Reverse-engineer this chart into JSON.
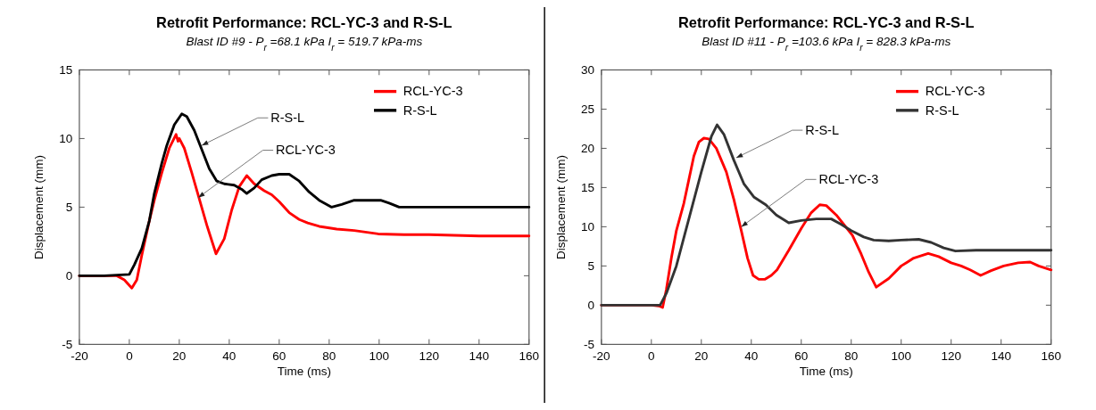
{
  "chart_data": [
    {
      "type": "line",
      "title": "Retrofit Performance: RCL-YC-3 and R-S-L",
      "subtitle": "Blast ID #9 - P$_{r}$ =68.1 kPa I$_{r}$ = 519.7 kPa-ms",
      "xlabel": "Time (ms)",
      "ylabel": "Displacement (mm)",
      "xlim": [
        -20,
        160
      ],
      "xticks": [
        -20,
        0,
        20,
        40,
        60,
        80,
        100,
        120,
        140,
        160
      ],
      "ylim": [
        -5,
        15
      ],
      "yticks": [
        -5,
        0,
        5,
        10,
        15
      ],
      "grid": false,
      "legend": "top right",
      "marker": "none",
      "line_style": "solid",
      "annotations": [
        {
          "text": "R-S-L",
          "x": 29,
          "y": 9.5
        },
        {
          "text": "RCL-YC-3",
          "x": 27.6,
          "y": 5.7
        }
      ],
      "series": [
        {
          "name": "RCL-YC-3",
          "color": "#ff0000",
          "x": [
            -20,
            -5,
            -2,
            1,
            3,
            5,
            8,
            10,
            13,
            16,
            18.7,
            19.5,
            20,
            22,
            25,
            28,
            31,
            34.7,
            38,
            41,
            44,
            47,
            50,
            54,
            57,
            60,
            64,
            68,
            71.4,
            76,
            83,
            90,
            99.6,
            110,
            120,
            130,
            140,
            150,
            160
          ],
          "values": [
            0,
            0,
            -0.3,
            -0.9,
            -0.3,
            1.5,
            4,
            5.5,
            7.5,
            9.3,
            10.3,
            9.8,
            10,
            9.3,
            7.5,
            5.6,
            3.7,
            1.6,
            2.7,
            4.8,
            6.5,
            7.3,
            6.7,
            6.2,
            5.9,
            5.4,
            4.6,
            4.1,
            3.85,
            3.6,
            3.4,
            3.3,
            3.05,
            3.0,
            3.0,
            2.95,
            2.9,
            2.9,
            2.9
          ]
        },
        {
          "name": "R-S-L",
          "color": "#000000",
          "x": [
            -20,
            -10,
            0,
            2,
            5,
            8,
            10,
            13,
            15,
            18,
            21,
            23,
            26,
            29,
            32,
            35,
            38,
            42,
            45,
            47,
            50,
            53,
            57,
            60,
            64,
            68,
            72,
            76,
            81,
            85,
            90,
            95,
            100.6,
            104,
            108,
            115,
            125,
            135,
            145,
            155,
            160
          ],
          "values": [
            0,
            0,
            0.1,
            0.8,
            2,
            4,
            6,
            8.2,
            9.5,
            11,
            11.8,
            11.6,
            10.6,
            9.2,
            7.8,
            6.9,
            6.7,
            6.6,
            6.3,
            6.0,
            6.4,
            7.0,
            7.3,
            7.4,
            7.4,
            6.9,
            6.1,
            5.5,
            5.0,
            5.2,
            5.5,
            5.5,
            5.5,
            5.3,
            5.0,
            5.0,
            5.0,
            5.0,
            5.0,
            5.0,
            5.0
          ]
        }
      ]
    },
    {
      "type": "line",
      "title": "Retrofit Performance: RCL-YC-3 and R-S-L",
      "subtitle": "Blast ID #11 - P$_{r}$ =103.6 kPa I$_{r}$ = 828.3 kPa-ms",
      "xlabel": "Time (ms)",
      "ylabel": "Displacement (mm)",
      "xlim": [
        -20,
        160
      ],
      "xticks": [
        -20,
        0,
        20,
        40,
        60,
        80,
        100,
        120,
        140,
        160
      ],
      "ylim": [
        -5,
        30
      ],
      "yticks": [
        -5,
        0,
        5,
        10,
        15,
        20,
        25,
        30
      ],
      "grid": false,
      "legend": "top right",
      "marker": "none",
      "line_style": "solid",
      "annotations": [
        {
          "text": "R-S-L",
          "x": 34,
          "y": 18.8
        },
        {
          "text": "RCL-YC-3",
          "x": 36,
          "y": 10
        }
      ],
      "series": [
        {
          "name": "RCL-YC-3",
          "color": "#ff0000",
          "x": [
            -20,
            0,
            3,
            4.5,
            6,
            8,
            10,
            13,
            15,
            17,
            19,
            21,
            23,
            26,
            30,
            33,
            36,
            38.5,
            40.7,
            43,
            45.5,
            48,
            50.3,
            55,
            60,
            64,
            67.4,
            70,
            74,
            77,
            80.5,
            84,
            87,
            90,
            95,
            100,
            105,
            110.8,
            115,
            120,
            124,
            127.6,
            131.8,
            136,
            141,
            146.8,
            151.6,
            155,
            160
          ],
          "values": [
            0,
            0,
            -0.1,
            -0.3,
            2,
            6,
            9.5,
            13,
            16,
            19,
            20.8,
            21.3,
            21.2,
            20,
            17,
            13.5,
            9.5,
            6,
            3.8,
            3.3,
            3.3,
            3.8,
            4.5,
            7,
            9.8,
            11.8,
            12.8,
            12.7,
            11.5,
            10.3,
            8.9,
            6.5,
            4.2,
            2.3,
            3.4,
            5,
            6,
            6.6,
            6.2,
            5.4,
            5,
            4.5,
            3.8,
            4.4,
            5,
            5.4,
            5.5,
            5,
            4.5
          ]
        },
        {
          "name": "R-S-L",
          "color": "#333333",
          "x": [
            -20,
            0,
            3.5,
            6,
            10,
            15,
            20,
            24,
            26.3,
            29,
            33,
            37,
            41,
            45.8,
            50,
            55,
            60,
            66,
            72,
            76,
            80,
            85,
            89,
            95,
            100,
            107,
            112,
            117,
            121.7,
            130,
            140,
            150,
            160
          ],
          "values": [
            0,
            0,
            0,
            1.5,
            5,
            11,
            17,
            21.5,
            23,
            21.8,
            18.5,
            15.5,
            13.8,
            12.8,
            11.5,
            10.5,
            10.8,
            11,
            11,
            10.3,
            9.5,
            8.7,
            8.3,
            8.2,
            8.3,
            8.4,
            8,
            7.3,
            6.9,
            7,
            7,
            7,
            7
          ]
        }
      ]
    }
  ]
}
